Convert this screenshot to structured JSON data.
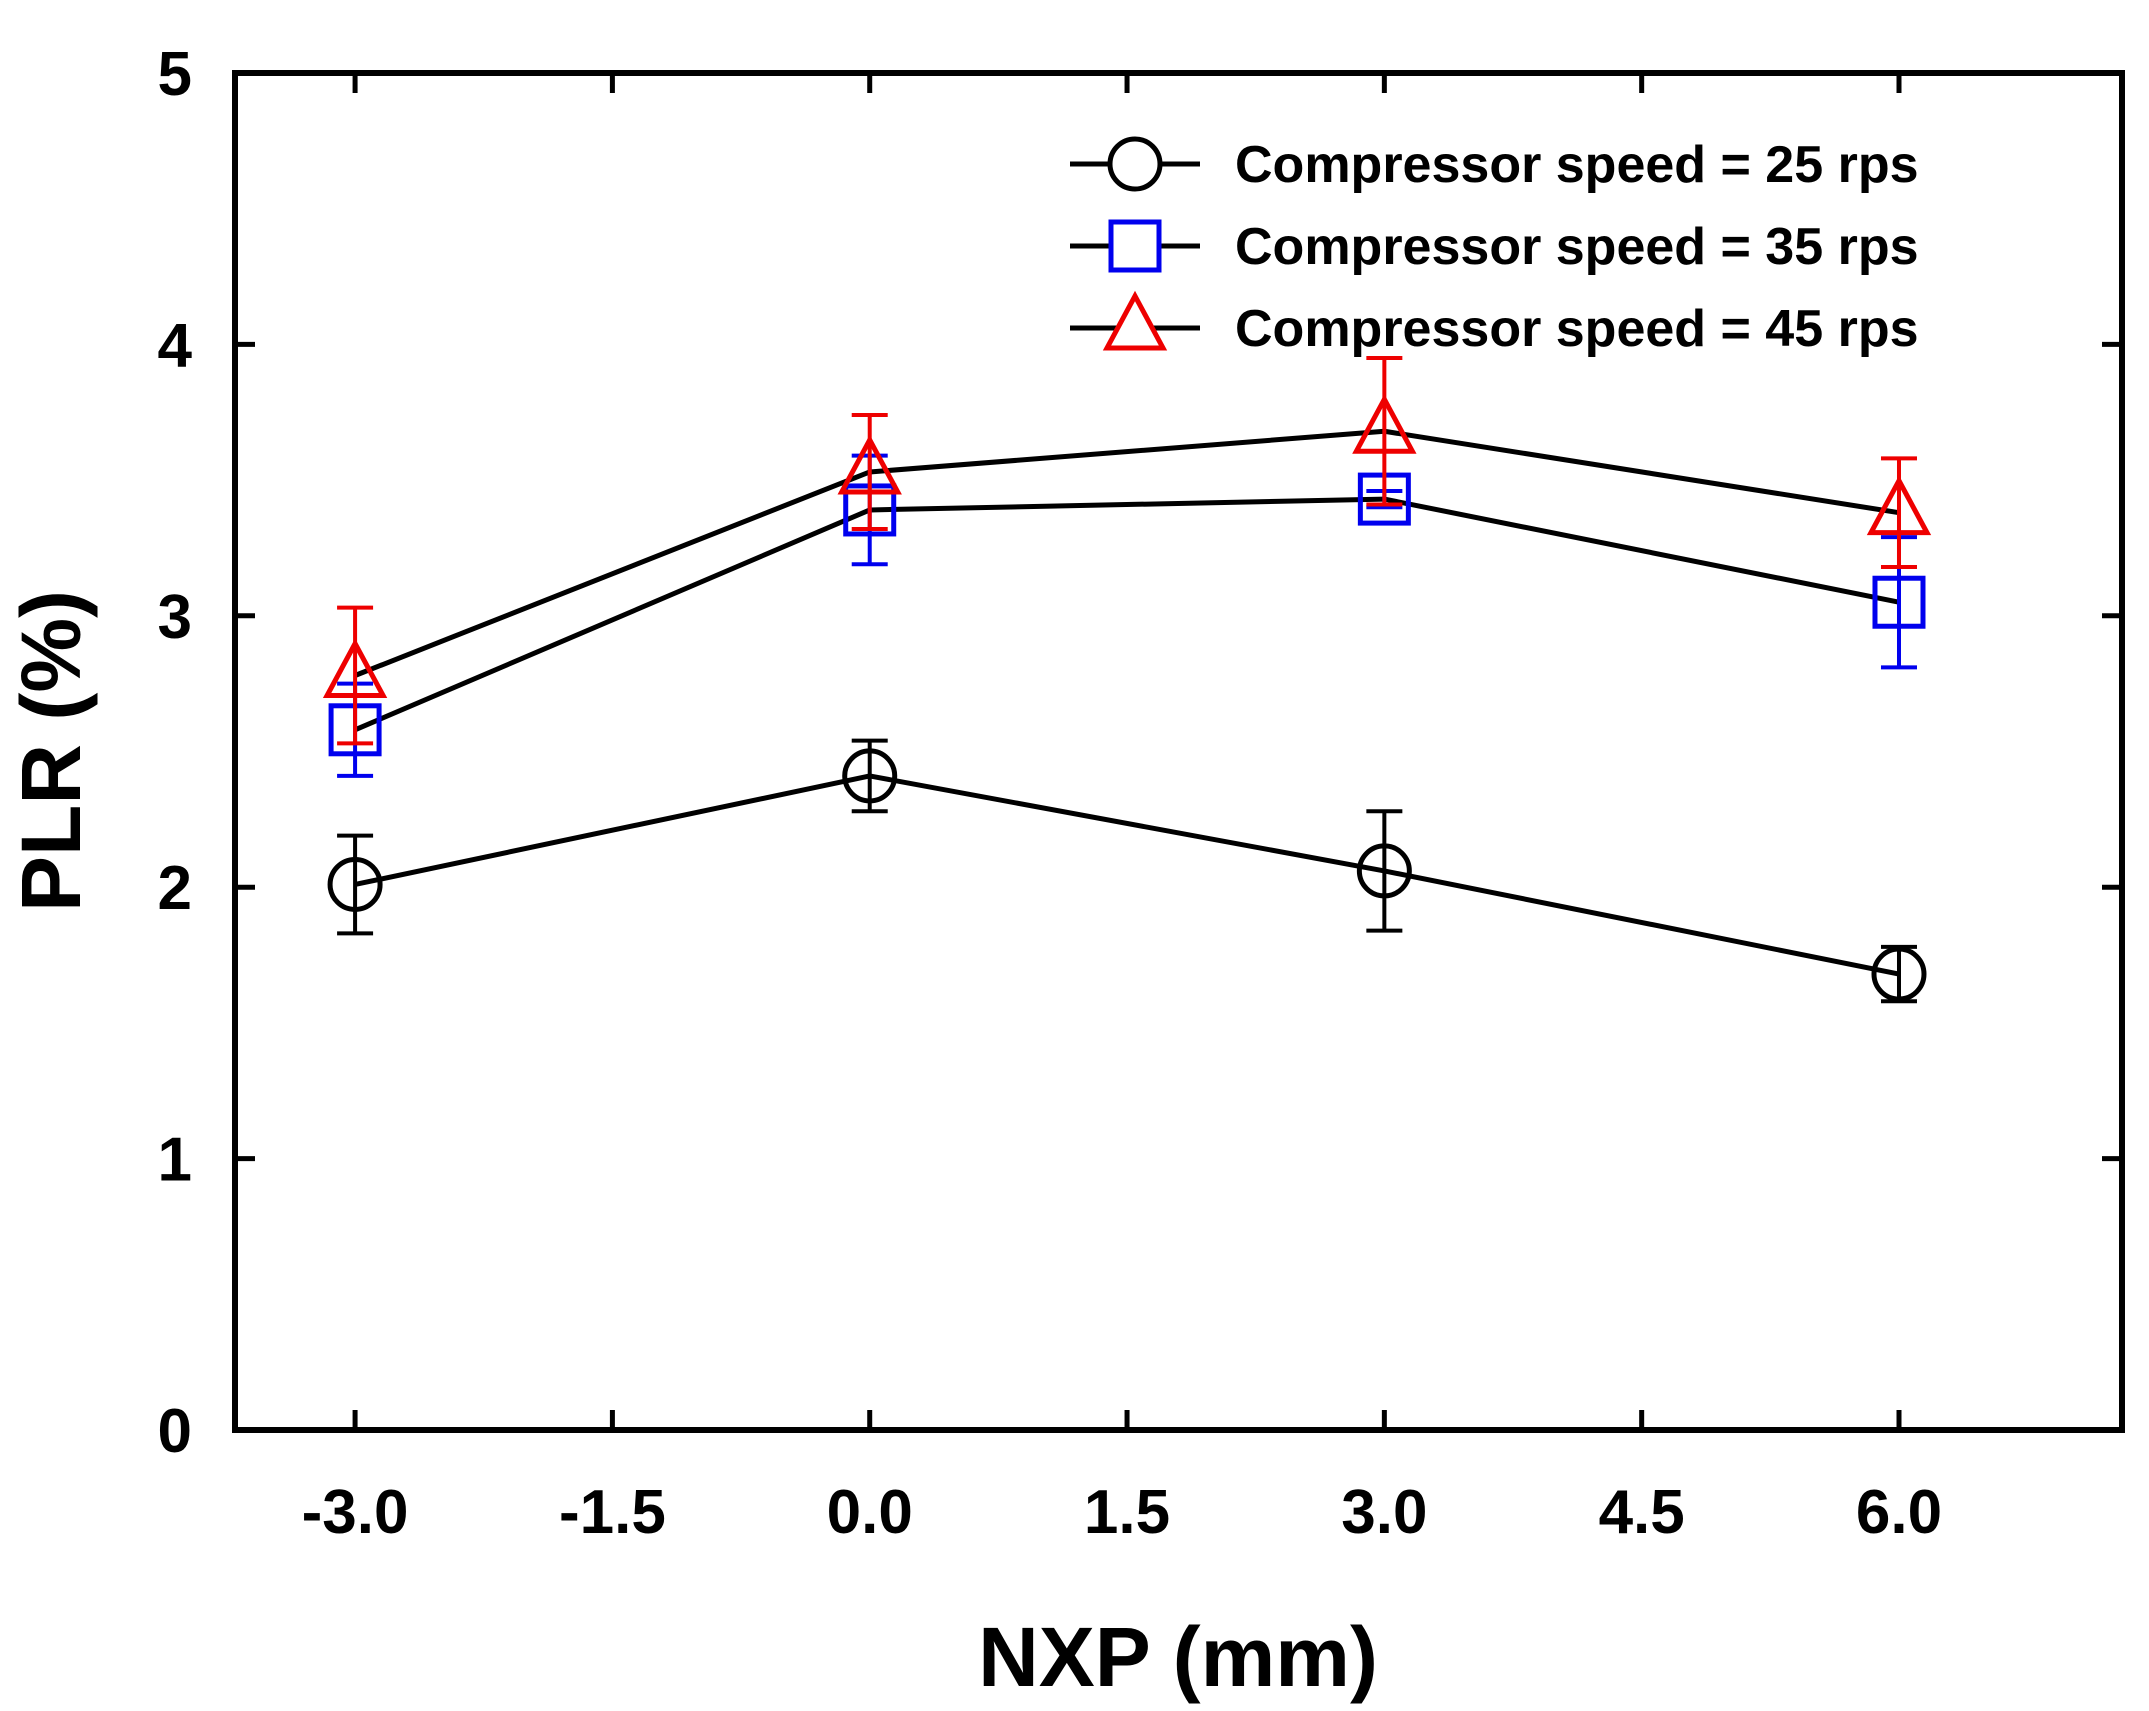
{
  "chart_data": {
    "type": "line",
    "title": "",
    "xlabel": "NXP (mm)",
    "ylabel": "PLR (%)",
    "xlim": [
      -3.7,
      7.3
    ],
    "ylim": [
      0,
      5
    ],
    "xticks": [
      -3.0,
      -1.5,
      0.0,
      1.5,
      3.0,
      4.5,
      6.0
    ],
    "xtick_labels": [
      "-3.0",
      "-1.5",
      "0.0",
      "1.5",
      "3.0",
      "4.5",
      "6.0"
    ],
    "yticks": [
      0,
      1,
      2,
      3,
      4,
      5
    ],
    "ytick_labels": [
      "0",
      "1",
      "2",
      "3",
      "4",
      "5"
    ],
    "grid": false,
    "legend_position": "top-right",
    "series": [
      {
        "name": "Compressor speed = 25 rps",
        "marker": "circle",
        "marker_color": "#000000",
        "line_color": "#000000",
        "x": [
          -3.0,
          0.0,
          3.0,
          6.0
        ],
        "y": [
          2.01,
          2.41,
          2.06,
          1.68
        ],
        "err": [
          0.18,
          0.13,
          0.22,
          0.1
        ]
      },
      {
        "name": "Compressor speed = 35 rps",
        "marker": "square",
        "marker_color": "#0000ee",
        "line_color": "#000000",
        "x": [
          -3.0,
          0.0,
          3.0,
          6.0
        ],
        "y": [
          2.58,
          3.39,
          3.43,
          3.05
        ],
        "err": [
          0.17,
          0.2,
          0.03,
          0.24
        ]
      },
      {
        "name": "Compressor speed = 45 rps",
        "marker": "triangle",
        "marker_color": "#ee0000",
        "line_color": "#000000",
        "x": [
          -3.0,
          0.0,
          3.0,
          6.0
        ],
        "y": [
          2.78,
          3.53,
          3.68,
          3.38
        ],
        "err": [
          0.25,
          0.21,
          0.27,
          0.2
        ]
      }
    ]
  }
}
